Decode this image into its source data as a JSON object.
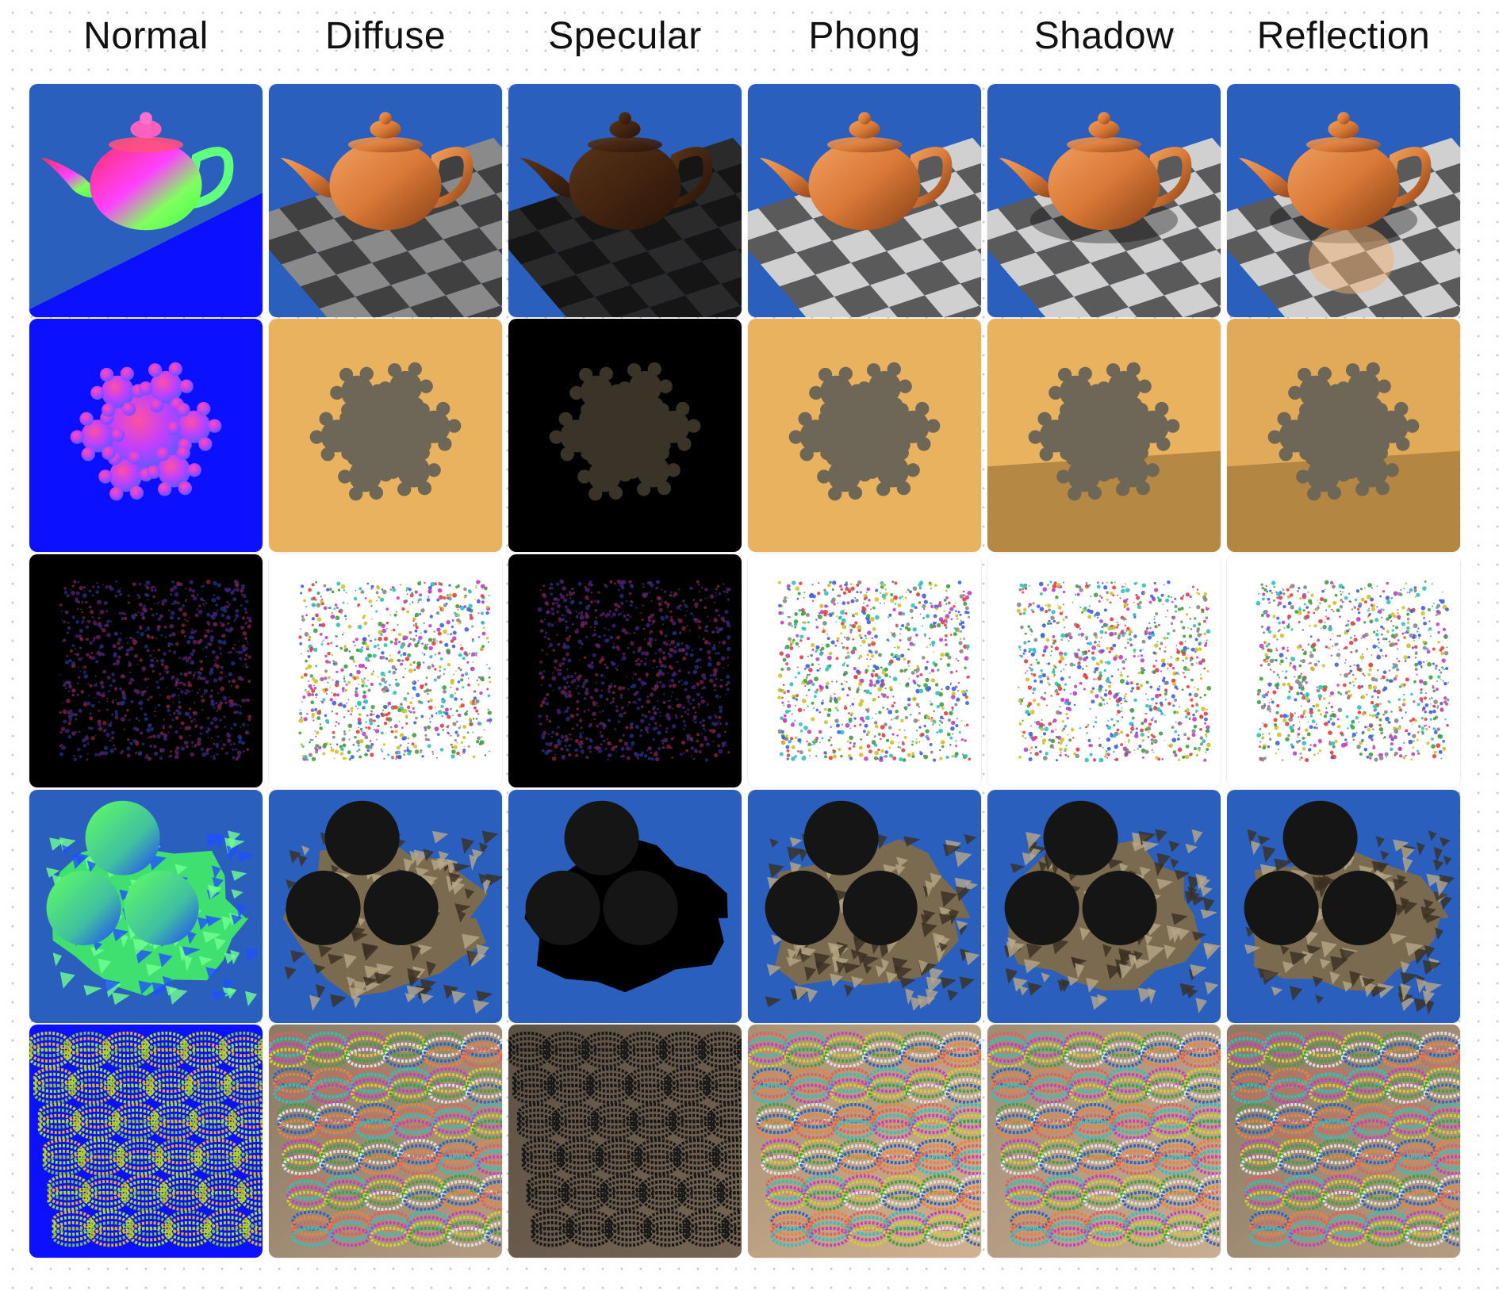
{
  "columns": [
    {
      "label": "Normal"
    },
    {
      "label": "Diffuse"
    },
    {
      "label": "Specular"
    },
    {
      "label": "Phong"
    },
    {
      "label": "Shadow"
    },
    {
      "label": "Reflection"
    }
  ],
  "scenes": [
    {
      "id": "teapot",
      "bg": {
        "Normal": "#2b5fbd",
        "Diffuse": "#2b5fbd",
        "Specular": "#2b5fbd",
        "Phong": "#2b5fbd",
        "Shadow": "#2b5fbd",
        "Reflection": "#2b5fbd"
      }
    },
    {
      "id": "fractal",
      "bg": {
        "Normal": "#0b11ff",
        "Diffuse": "#e8b25e",
        "Specular": "#000000",
        "Phong": "#e8b25e",
        "Shadow": "#e8b25e",
        "Reflection": "#e0aa58"
      }
    },
    {
      "id": "spheres-cloud",
      "bg": {
        "Normal": "#000000",
        "Diffuse": "#ffffff",
        "Specular": "#000000",
        "Phong": "#ffffff",
        "Shadow": "#ffffff",
        "Reflection": "#ffffff"
      }
    },
    {
      "id": "terrain",
      "bg": {
        "Normal": "#2b5fbd",
        "Diffuse": "#2b5fbd",
        "Specular": "#2b5fbd",
        "Phong": "#2b5fbd",
        "Shadow": "#2b5fbd",
        "Reflection": "#2b5fbd"
      }
    },
    {
      "id": "gears",
      "bg": {
        "Normal": "#0b11ff",
        "Diffuse": "#8a7a66",
        "Specular": "#4a4036",
        "Phong": "#c9ab88",
        "Shadow": "#b8a28a",
        "Reflection": "#8a7a66"
      }
    }
  ]
}
